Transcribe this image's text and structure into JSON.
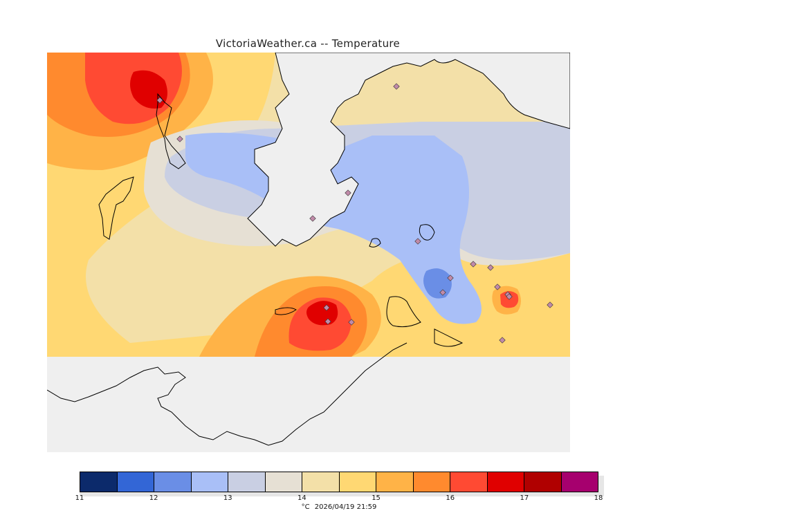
{
  "title": "VictoriaWeather.ca -- Temperature",
  "colorbar": {
    "colors": [
      "#0c2a6b",
      "#3366d6",
      "#6a8ee6",
      "#a9bff7",
      "#c9cfe3",
      "#e6e0d4",
      "#f3e0a8",
      "#ffd873",
      "#ffb347",
      "#ff8a2e",
      "#ff4a33",
      "#e00000",
      "#b00000",
      "#a6006e"
    ],
    "ticks": [
      "11",
      "12",
      "13",
      "14",
      "15",
      "16",
      "17",
      "18"
    ]
  },
  "footer": {
    "unit": "°C",
    "timestamp": "2026/04/19 21:59"
  },
  "legend_note": ""
}
